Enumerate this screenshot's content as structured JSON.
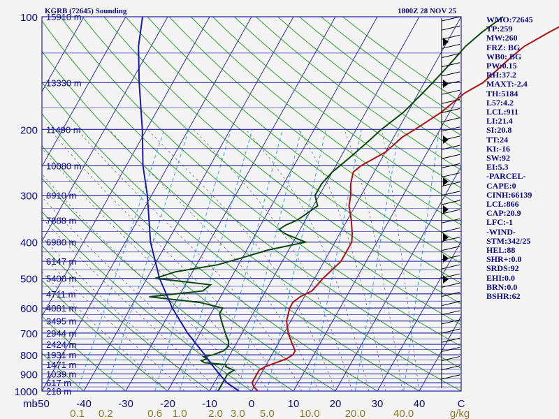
{
  "header": {
    "title": "KGRB (72645) Sounding",
    "datetime": "1800Z 28 NOV 25"
  },
  "chart_data": {
    "type": "line",
    "title": "KGRB (72645) Sounding",
    "subtitle": "1800Z 28 NOV 25",
    "y_scale": "log",
    "ylim": [
      1000,
      100
    ],
    "xlim": [
      -50,
      50
    ],
    "corner_label": "mb",
    "y_ticks": [
      100,
      200,
      300,
      400,
      500,
      600,
      700,
      800,
      900,
      1000
    ],
    "x_ticks": [
      -50,
      -40,
      -30,
      -20,
      -10,
      0,
      10,
      20,
      30,
      40
    ],
    "x_end_label": "C",
    "mixing_ratio_ticks": [
      {
        "label": "0.1",
        "value": 0.1
      },
      {
        "label": "0.2",
        "value": 0.2
      },
      {
        "label": "0.6",
        "value": 0.6
      },
      {
        "label": "1.0",
        "value": 1.0
      },
      {
        "label": "2.0",
        "value": 2.0
      },
      {
        "label": "3.0",
        "value": 3.0
      },
      {
        "label": "5.0",
        "value": 5.0
      },
      {
        "label": "10.0",
        "value": 10.0
      },
      {
        "label": "20.0",
        "value": 20.0
      },
      {
        "label": "40.0",
        "value": 40.0
      }
    ],
    "mixing_ratio_unit": "g/kg",
    "height_labels": [
      {
        "p": 100,
        "label": "15910 m"
      },
      {
        "p": 150,
        "label": "13330 m"
      },
      {
        "p": 200,
        "label": "11490 m"
      },
      {
        "p": 250,
        "label": "10080 m"
      },
      {
        "p": 300,
        "label": "8910 m"
      },
      {
        "p": 350,
        "label": "7888 m"
      },
      {
        "p": 400,
        "label": "6980 m"
      },
      {
        "p": 450,
        "label": "6147 m"
      },
      {
        "p": 500,
        "label": "5400 m"
      },
      {
        "p": 550,
        "label": "4711 m"
      },
      {
        "p": 600,
        "label": "4081 m"
      },
      {
        "p": 650,
        "label": "3495 m"
      },
      {
        "p": 700,
        "label": "2944 m"
      },
      {
        "p": 750,
        "label": "2424 m"
      },
      {
        "p": 800,
        "label": "1931 m"
      },
      {
        "p": 850,
        "label": "1471 m"
      },
      {
        "p": 900,
        "label": "1039 m"
      },
      {
        "p": 950,
        "label": "617 m"
      },
      {
        "p": 1000,
        "label": "218 m"
      }
    ],
    "series": [
      {
        "key": "temperature",
        "color": "#b01010",
        "points": [
          [
            1000,
            1.5
          ],
          [
            975,
            0
          ],
          [
            950,
            -1
          ],
          [
            925,
            -1
          ],
          [
            900,
            -1
          ],
          [
            880,
            -1
          ],
          [
            860,
            0
          ],
          [
            840,
            2
          ],
          [
            820,
            4
          ],
          [
            800,
            5
          ],
          [
            780,
            5
          ],
          [
            760,
            4
          ],
          [
            740,
            3
          ],
          [
            720,
            2
          ],
          [
            700,
            1
          ],
          [
            650,
            -1
          ],
          [
            600,
            -2
          ],
          [
            580,
            -2
          ],
          [
            560,
            -1
          ],
          [
            540,
            1
          ],
          [
            520,
            1.5
          ],
          [
            500,
            2
          ],
          [
            450,
            4
          ],
          [
            400,
            4
          ],
          [
            380,
            3
          ],
          [
            350,
            1
          ],
          [
            320,
            -1.5
          ],
          [
            300,
            -2.5
          ],
          [
            280,
            -4
          ],
          [
            260,
            -5
          ],
          [
            250,
            -4
          ],
          [
            240,
            -2
          ],
          [
            230,
            0
          ],
          [
            220,
            1
          ],
          [
            210,
            2
          ],
          [
            200,
            4
          ],
          [
            180,
            8
          ],
          [
            160,
            11
          ],
          [
            150,
            14
          ],
          [
            140,
            15.5
          ],
          [
            130,
            17
          ],
          [
            120,
            19
          ],
          [
            110,
            23
          ],
          [
            100,
            28
          ]
        ]
      },
      {
        "key": "dewpoint",
        "color": "#0a4a0a",
        "points": [
          [
            1000,
            -8
          ],
          [
            950,
            -8
          ],
          [
            920,
            -8
          ],
          [
            900,
            -8
          ],
          [
            880,
            -7
          ],
          [
            860,
            -9.5
          ],
          [
            850,
            -9.5
          ],
          [
            840,
            -15
          ],
          [
            830,
            -16
          ],
          [
            820,
            -15
          ],
          [
            810,
            -16
          ],
          [
            800,
            -14
          ],
          [
            790,
            -13
          ],
          [
            780,
            -12
          ],
          [
            760,
            -11.5
          ],
          [
            740,
            -12
          ],
          [
            720,
            -13
          ],
          [
            700,
            -14
          ],
          [
            680,
            -15
          ],
          [
            660,
            -16
          ],
          [
            640,
            -17
          ],
          [
            620,
            -18
          ],
          [
            600,
            -18
          ],
          [
            580,
            -24
          ],
          [
            560,
            -37
          ],
          [
            540,
            -25
          ],
          [
            520,
            -24
          ],
          [
            500,
            -38
          ],
          [
            480,
            -34
          ],
          [
            460,
            -25
          ],
          [
            440,
            -20
          ],
          [
            420,
            -15
          ],
          [
            400,
            -7
          ],
          [
            390,
            -10
          ],
          [
            380,
            -13
          ],
          [
            370,
            -15
          ],
          [
            360,
            -14
          ],
          [
            350,
            -12
          ],
          [
            340,
            -11
          ],
          [
            330,
            -10
          ],
          [
            320,
            -9
          ],
          [
            300,
            -11
          ],
          [
            280,
            -11
          ],
          [
            260,
            -10
          ],
          [
            250,
            -9
          ],
          [
            240,
            -8
          ],
          [
            230,
            -7
          ],
          [
            220,
            -6
          ],
          [
            210,
            -5
          ],
          [
            200,
            -4
          ],
          [
            180,
            -1
          ],
          [
            160,
            1
          ],
          [
            150,
            2
          ],
          [
            140,
            3
          ],
          [
            130,
            4
          ],
          [
            120,
            5
          ],
          [
            110,
            7
          ],
          [
            100,
            10
          ]
        ]
      },
      {
        "key": "parcel",
        "color": "#1a1aaa",
        "points": [
          [
            1000,
            -3
          ],
          [
            975,
            -5
          ],
          [
            950,
            -7
          ],
          [
            925,
            -8.5
          ],
          [
            900,
            -10
          ],
          [
            850,
            -13
          ],
          [
            800,
            -16
          ],
          [
            700,
            -23
          ],
          [
            600,
            -30
          ],
          [
            500,
            -37
          ],
          [
            400,
            -44
          ],
          [
            300,
            -51
          ],
          [
            250,
            -56
          ],
          [
            200,
            -61
          ],
          [
            150,
            -68
          ],
          [
            120,
            -73
          ],
          [
            100,
            -76
          ]
        ]
      }
    ]
  },
  "indices": [
    "WMO:72645",
    "TP:259",
    "MW:260",
    "FRZ: BG",
    "WB0: BG",
    "PW:0.15",
    "RH:37.2",
    "MAXT:-2.4",
    "TH:5184",
    "L57:4.2",
    "LCL:911",
    "LI:21.4",
    "SI:20.8",
    "TT:24",
    "KI:-16",
    "SW:92",
    "EI:5.3",
    "-PARCEL-",
    "CAPE:0",
    "CINH:66139",
    "LCL:866",
    "CAP:20.9",
    "LFC:-1",
    "-WIND-",
    "STM:342/25",
    "HEL:88",
    "SHR+:0.0",
    "SRDS:92",
    "EHI:0.0",
    "BRN:0.0",
    "BSHR:62"
  ],
  "colors": {
    "isobar": "#2020a0",
    "isotherm": "#3030a8",
    "dry_adiabat": "#2aa02a",
    "moist_adiabat": "#707070",
    "mixing_ratio": "#30a8d8",
    "label_mr": "#8a7a2a",
    "text": "#0a0a8a"
  }
}
